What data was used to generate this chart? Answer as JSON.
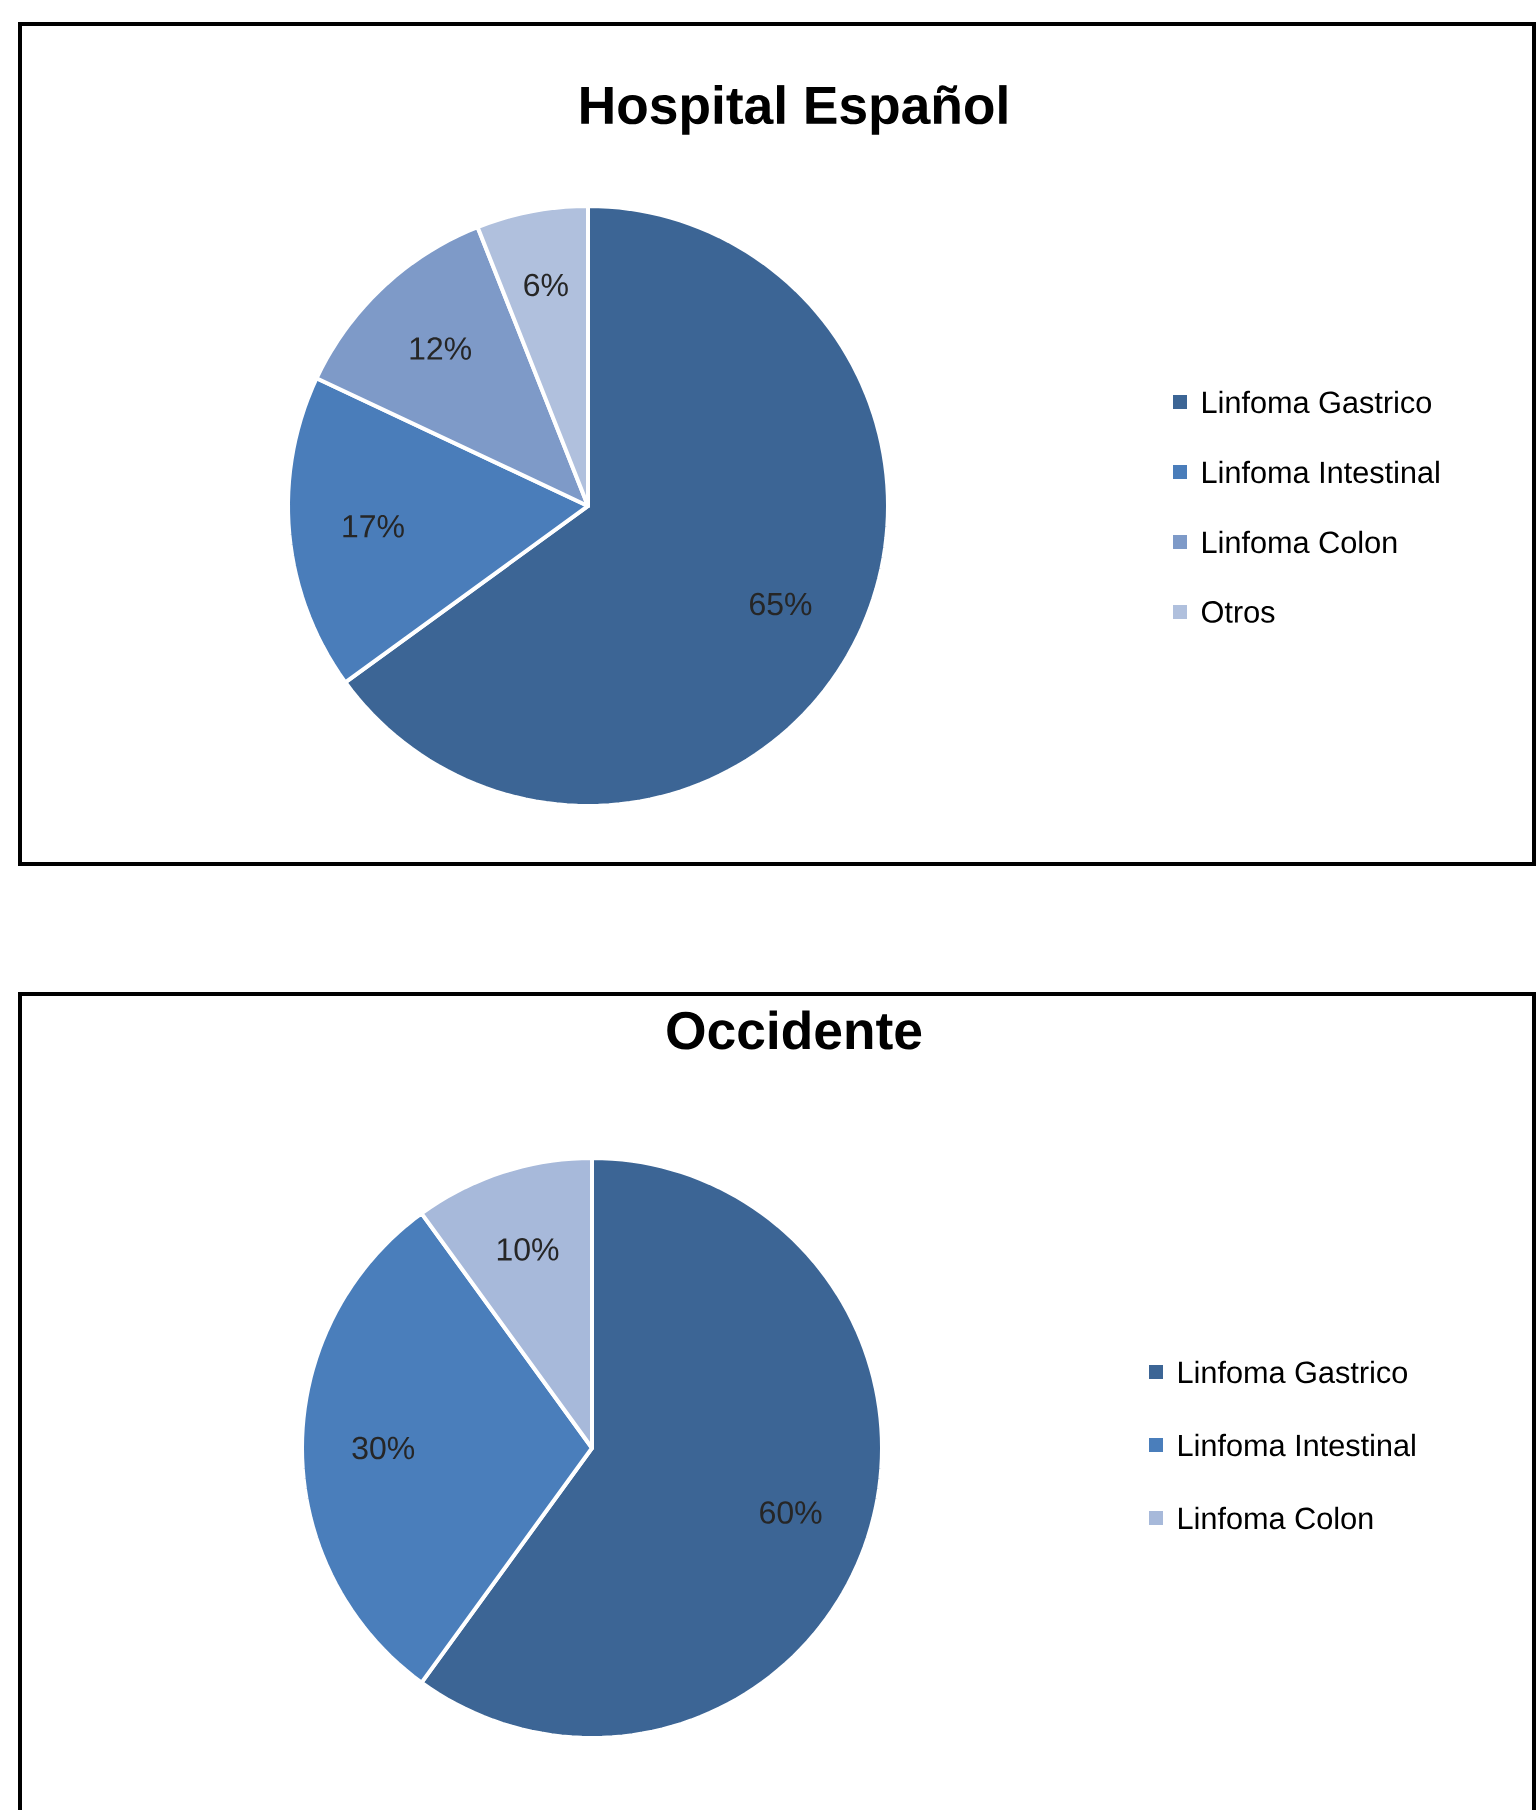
{
  "chart_data": [
    {
      "type": "pie",
      "title": "Hospital Español",
      "categories": [
        "Linfoma Gastrico",
        "Linfoma Intestinal",
        "Linfoma Colon",
        "Otros"
      ],
      "values": [
        65,
        17,
        12,
        6
      ],
      "colors": [
        "#3c6595",
        "#4a7dba",
        "#7e9ac8",
        "#b0c0dd"
      ],
      "value_labels": [
        "65%",
        "17%",
        "12%",
        "6%"
      ],
      "legend": "right"
    },
    {
      "type": "pie",
      "title": "Occidente",
      "categories": [
        "Linfoma Gastrico",
        "Linfoma Intestinal",
        "Linfoma Colon"
      ],
      "values": [
        60,
        30,
        10
      ],
      "colors": [
        "#3c6595",
        "#4a7ebb",
        "#a7b9da"
      ],
      "value_labels": [
        "60%",
        "30%",
        "10%"
      ],
      "legend": "right"
    }
  ]
}
